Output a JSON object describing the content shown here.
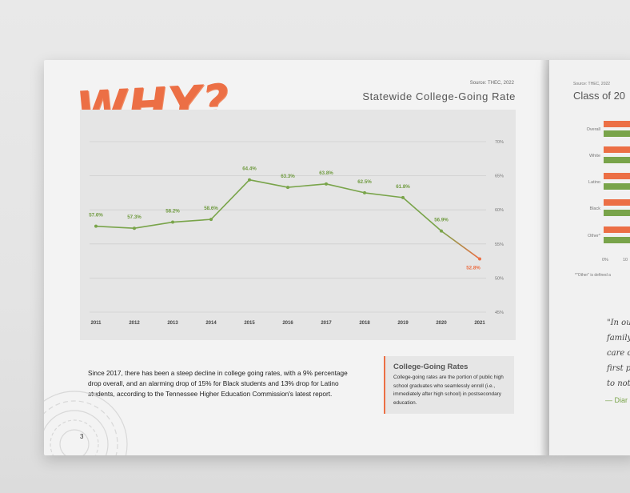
{
  "left_page": {
    "heading": "WHY?",
    "source": "Source: THEC, 2022",
    "chart_title": "Statewide College-Going Rate",
    "body_text": "Since 2017, there has been a steep decline in college going rates, with a 9% percentage drop overall, and an alarming drop of 15% for Black students and 13% drop for Latino students, according to the Tennessee Higher Education Commission's latest report.",
    "callout_title": "College-Going Rates",
    "callout_text": "College-going rates are the portion of public high school graduates who seamlessly enroll (i.e., immediately after high school) in postsecondary education.",
    "page_number": "3"
  },
  "chart_data": {
    "type": "line",
    "title": "Statewide College-Going Rate",
    "x": [
      "2011",
      "2012",
      "2013",
      "2014",
      "2015",
      "2016",
      "2017",
      "2018",
      "2019",
      "2020",
      "2021"
    ],
    "values": [
      57.6,
      57.3,
      58.2,
      58.6,
      64.4,
      63.3,
      63.8,
      62.5,
      61.8,
      56.9,
      52.8
    ],
    "data_labels": [
      "57.6%",
      "57.3%",
      "58.2%",
      "58.6%",
      "64.4%",
      "63.3%",
      "63.8%",
      "62.5%",
      "61.8%",
      "56.9%",
      "52.8%"
    ],
    "y_ticks": [
      "70%",
      "65%",
      "60%",
      "55%",
      "50%",
      "45%"
    ],
    "ylim": [
      45,
      70
    ],
    "grid": true,
    "colors": {
      "line": "#79a44a",
      "decline": "#ec6f45",
      "label": "#6f9a3f",
      "last_label": "#ec6f45"
    }
  },
  "right_page": {
    "source": "Source: THEC, 2022",
    "title": "Class of 20",
    "categories": [
      "Overall",
      "White",
      "Latino",
      "Black",
      "Other*"
    ],
    "ticks": [
      "0%",
      "10"
    ],
    "footnote": "*\"Other\" is defined a",
    "quote_lines": [
      "\"In our",
      "family,",
      "care of",
      "first pe",
      "to not g"
    ],
    "attribution": "— Diar"
  },
  "colors": {
    "accent": "#ec6f45",
    "green": "#79a44a"
  }
}
